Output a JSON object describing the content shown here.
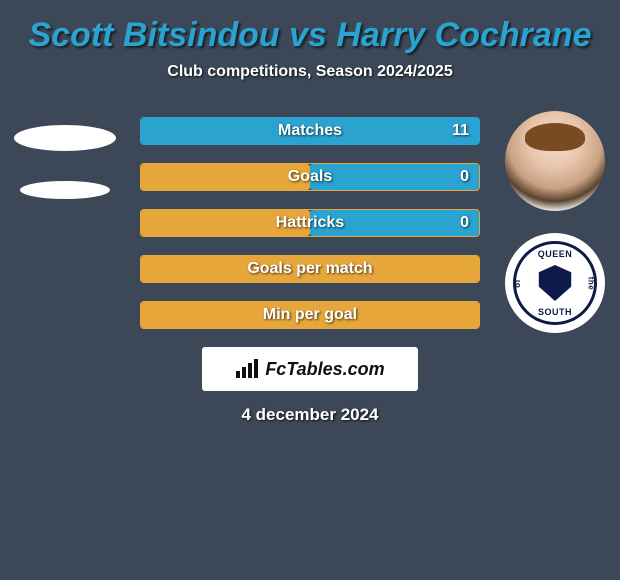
{
  "title": "Scott Bitsindou vs Harry Cochrane",
  "title_color": "#2aa3d0",
  "subtitle": "Club competitions, Season 2024/2025",
  "background_color": "#3c4858",
  "brand": "FcTables.com",
  "date": "4 december 2024",
  "badge": {
    "top": "QUEEN",
    "bottom": "SOUTH",
    "left": "of",
    "right": "the",
    "color": "#0e1a4a"
  },
  "bars": [
    {
      "label": "Matches",
      "value_right": "11",
      "border": "#2aa3d0",
      "left_pct": 0,
      "right_pct": 100,
      "left_color": "#e6a63a",
      "right_color": "#2aa3d0"
    },
    {
      "label": "Goals",
      "value_right": "0",
      "border": "#e6a63a",
      "left_pct": 50,
      "right_pct": 50,
      "left_color": "#e6a63a",
      "right_color": "#2aa3d0"
    },
    {
      "label": "Hattricks",
      "value_right": "0",
      "border": "#e6a63a",
      "left_pct": 50,
      "right_pct": 50,
      "left_color": "#e6a63a",
      "right_color": "#2aa3d0"
    },
    {
      "label": "Goals per match",
      "value_right": "",
      "border": "#e6a63a",
      "left_pct": 100,
      "right_pct": 0,
      "left_color": "#e6a63a",
      "right_color": "#2aa3d0"
    },
    {
      "label": "Min per goal",
      "value_right": "",
      "border": "#e6a63a",
      "left_pct": 100,
      "right_pct": 0,
      "left_color": "#e6a63a",
      "right_color": "#2aa3d0"
    }
  ]
}
